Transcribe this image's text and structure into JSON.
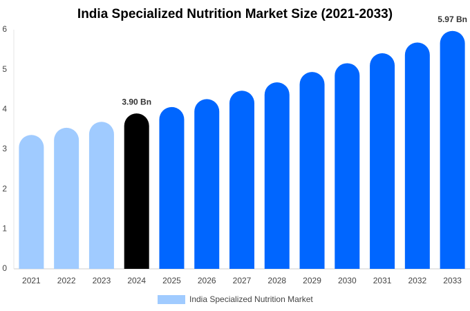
{
  "chart_data": {
    "type": "bar",
    "title": "India Specialized Nutrition Market Size (2021-2033)",
    "categories": [
      "2021",
      "2022",
      "2023",
      "2024",
      "2025",
      "2026",
      "2027",
      "2028",
      "2029",
      "2030",
      "2031",
      "2032",
      "2033"
    ],
    "series": [
      {
        "name": "India Specialized Nutrition Market",
        "color": "#a0cbff",
        "values": [
          3.36,
          3.54,
          3.69,
          3.9,
          4.06,
          4.26,
          4.47,
          4.68,
          4.94,
          5.16,
          5.41,
          5.68,
          5.97
        ],
        "value_labels": [
          null,
          null,
          null,
          "3.90 Bn",
          null,
          null,
          null,
          null,
          null,
          null,
          null,
          null,
          "5.97 Bn"
        ],
        "bar_colors": [
          "#a0cbff",
          "#a0cbff",
          "#a0cbff",
          "#000000",
          "#0066ff",
          "#0066ff",
          "#0066ff",
          "#0066ff",
          "#0066ff",
          "#0066ff",
          "#0066ff",
          "#0066ff",
          "#0066ff"
        ]
      }
    ],
    "ylim": [
      0,
      6
    ],
    "yticks": [
      0,
      1,
      2,
      3,
      4,
      5,
      6
    ],
    "grid": false,
    "legend": "bottom"
  }
}
